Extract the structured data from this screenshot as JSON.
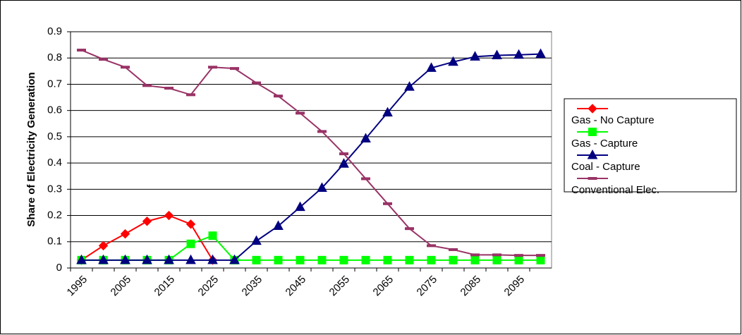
{
  "chart_data": {
    "type": "line",
    "y_label": "Share of Electricity Generation",
    "categories": [
      "1995",
      null,
      "2005",
      null,
      "2015",
      null,
      "2025",
      null,
      "2035",
      null,
      "2045",
      null,
      "2055",
      null,
      "2065",
      null,
      "2075",
      null,
      "2085",
      null,
      "2095",
      null
    ],
    "ylim": [
      0,
      0.9
    ],
    "yticks": [
      0,
      0.1,
      0.2,
      0.3,
      0.4,
      0.5,
      0.6,
      0.7,
      0.8,
      0.9
    ],
    "grid": true,
    "legend": "right",
    "series": [
      {
        "name": "Gas - No Capture",
        "color": "#ff0000",
        "marker": "diamond",
        "values": [
          0.03,
          0.085,
          0.13,
          0.178,
          0.2,
          0.167,
          0.03,
          null,
          null,
          null,
          null,
          null,
          null,
          null,
          null,
          null,
          null,
          null,
          null,
          null,
          null,
          null
        ]
      },
      {
        "name": "Gas - Capture",
        "color": "#00ff00",
        "marker": "square",
        "values": [
          0.03,
          0.03,
          0.03,
          0.03,
          0.03,
          0.092,
          0.123,
          0.03,
          0.03,
          0.03,
          0.03,
          0.03,
          0.03,
          0.03,
          0.03,
          0.03,
          0.03,
          0.03,
          0.03,
          0.03,
          0.03,
          0.03
        ]
      },
      {
        "name": "Coal - Capture",
        "color": "#000080",
        "marker": "triangle",
        "values": [
          0.03,
          0.03,
          0.03,
          0.03,
          0.03,
          0.03,
          0.03,
          0.03,
          0.103,
          0.16,
          0.232,
          0.305,
          0.397,
          0.493,
          0.592,
          0.69,
          0.762,
          0.785,
          0.805,
          0.81,
          0.812,
          0.815
        ]
      },
      {
        "name": "Conventional Elec.",
        "color": "#993366",
        "marker": "dash",
        "values": [
          0.83,
          0.795,
          0.765,
          0.695,
          0.685,
          0.66,
          0.765,
          0.76,
          0.705,
          0.655,
          0.59,
          0.52,
          0.435,
          0.34,
          0.245,
          0.15,
          0.085,
          0.07,
          0.05,
          0.05,
          0.048,
          0.048
        ]
      }
    ]
  }
}
